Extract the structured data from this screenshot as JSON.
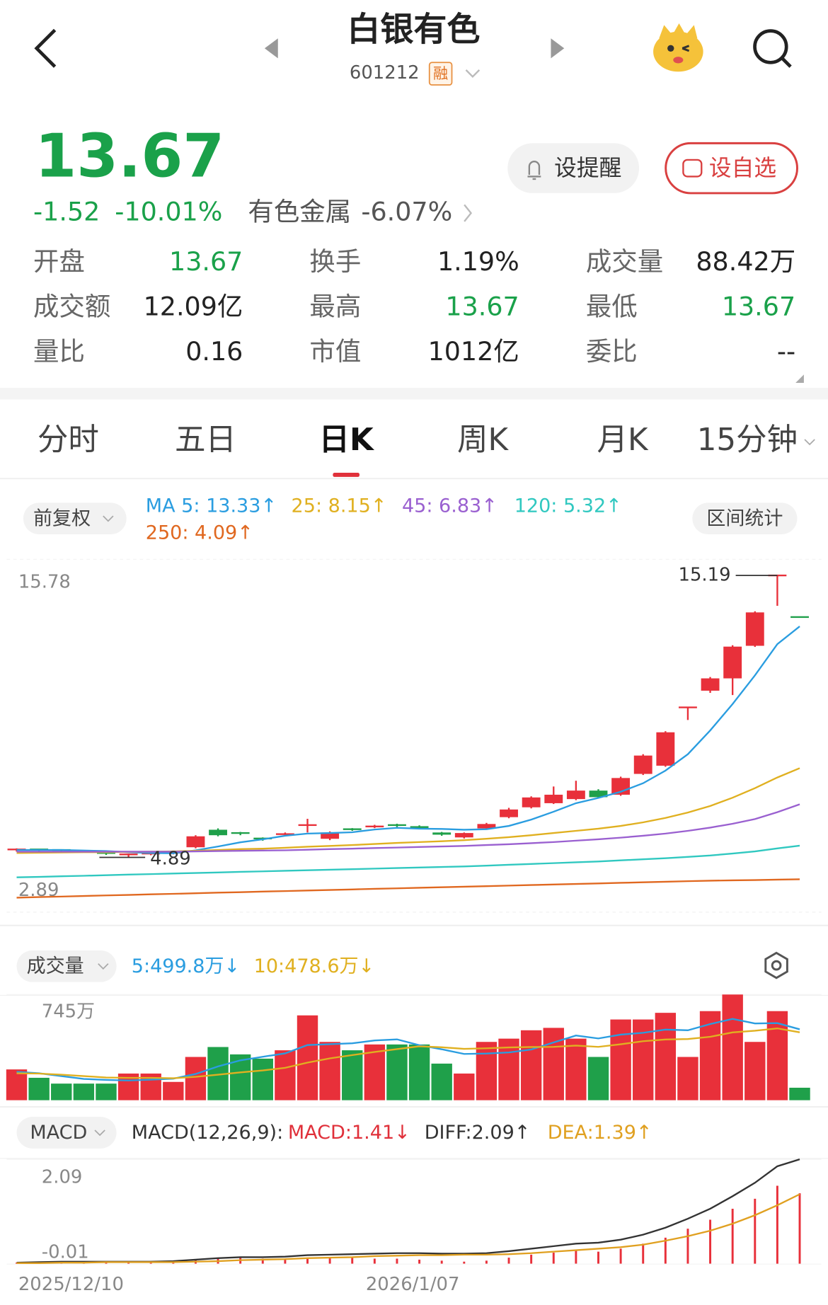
{
  "header": {
    "title": "白银有色",
    "code": "601212",
    "badge": "融"
  },
  "quote": {
    "price": "13.67",
    "change": "-1.52",
    "change_pct": "-10.01%",
    "sector": "有色金属",
    "sector_pct": "-6.07%"
  },
  "buttons": [
    "设提醒",
    "设自选"
  ],
  "stats": [
    {
      "label": "开盘",
      "value": "13.67",
      "color": "#1aa14a"
    },
    {
      "label": "换手",
      "value": "1.19%",
      "color": "#222222"
    },
    {
      "label": "成交量",
      "value": "88.42万",
      "color": "#222222"
    },
    {
      "label": "成交额",
      "value": "12.09亿",
      "color": "#222222"
    },
    {
      "label": "最高",
      "value": "13.67",
      "color": "#1aa14a"
    },
    {
      "label": "最低",
      "value": "13.67",
      "color": "#1aa14a"
    },
    {
      "label": "量比",
      "value": "0.16",
      "color": "#222222"
    },
    {
      "label": "市值",
      "value": "1012亿",
      "color": "#222222"
    },
    {
      "label": "委比",
      "value": "--",
      "color": "#222222"
    }
  ],
  "tabs": [
    "分时",
    "五日",
    "日K",
    "周K",
    "月K",
    "15分钟"
  ],
  "active_tab": 2,
  "kline": {
    "adjust": "前复权",
    "stats_button": "区间统计",
    "ylim": [
      2.89,
      15.78
    ],
    "yticks": [
      15.78,
      2.89
    ],
    "up_color": "#e8303a",
    "down_color": "#1fa04a",
    "high_label": 15.19,
    "low_label": 4.89,
    "open": [
      5.15,
      5.18,
      5.16,
      5.12,
      5.05,
      4.95,
      5.0,
      5.02,
      5.26,
      5.9,
      5.78,
      5.58,
      5.7,
      6.05,
      5.57,
      5.92,
      6.0,
      6.07,
      6.03,
      5.8,
      5.62,
      5.95,
      6.36,
      6.72,
      6.87,
      7.02,
      7.33,
      7.18,
      7.94,
      8.24,
      10.37,
      10.98,
      11.43,
      12.62,
      15.19,
      13.67
    ],
    "high": [
      5.22,
      5.2,
      5.18,
      5.14,
      5.07,
      5.03,
      5.06,
      5.1,
      5.7,
      5.95,
      5.82,
      5.62,
      5.8,
      6.3,
      5.84,
      5.96,
      6.08,
      6.12,
      6.06,
      5.82,
      5.8,
      6.15,
      6.7,
      7.12,
      7.48,
      7.69,
      7.38,
      7.84,
      8.66,
      9.5,
      10.37,
      11.48,
      12.64,
      13.88,
      15.19,
      13.67
    ],
    "low": [
      5.1,
      5.12,
      5.1,
      5.06,
      4.98,
      4.89,
      4.97,
      5.0,
      5.22,
      5.66,
      5.7,
      5.5,
      5.66,
      5.8,
      5.52,
      5.86,
      5.96,
      6.0,
      5.92,
      5.68,
      5.58,
      5.92,
      6.32,
      6.68,
      6.84,
      6.98,
      7.05,
      7.14,
      7.9,
      8.2,
      9.91,
      10.9,
      10.82,
      12.58,
      14.08,
      13.67
    ],
    "close": [
      5.18,
      5.16,
      5.14,
      5.1,
      5.02,
      5.0,
      5.03,
      5.06,
      5.66,
      5.7,
      5.76,
      5.55,
      5.74,
      6.07,
      5.8,
      5.9,
      6.02,
      6.05,
      5.95,
      5.72,
      5.78,
      6.11,
      6.64,
      7.08,
      7.18,
      7.33,
      7.09,
      7.79,
      8.61,
      9.46,
      10.37,
      11.43,
      12.59,
      13.84,
      15.19,
      13.67
    ],
    "ma": [
      {
        "label": "MA 5: 13.33↑",
        "color": "#2a9de0",
        "values": [
          5.16,
          5.16,
          5.16,
          5.14,
          5.12,
          5.08,
          5.05,
          5.04,
          5.15,
          5.29,
          5.44,
          5.55,
          5.68,
          5.76,
          5.78,
          5.81,
          5.91,
          5.97,
          5.94,
          5.93,
          5.9,
          5.92,
          6.04,
          6.27,
          6.56,
          6.87,
          7.06,
          7.29,
          7.6,
          8.06,
          8.66,
          9.53,
          10.49,
          11.54,
          12.68,
          13.33
        ]
      },
      {
        "label": "25: 8.15↑",
        "color": "#e0b020",
        "values": [
          5.05,
          5.06,
          5.07,
          5.08,
          5.08,
          5.09,
          5.1,
          5.11,
          5.13,
          5.16,
          5.19,
          5.21,
          5.24,
          5.28,
          5.31,
          5.34,
          5.38,
          5.42,
          5.45,
          5.48,
          5.52,
          5.57,
          5.63,
          5.7,
          5.78,
          5.86,
          5.94,
          6.04,
          6.17,
          6.33,
          6.53,
          6.77,
          7.07,
          7.42,
          7.81,
          8.15
        ]
      },
      {
        "label": "45: 6.83↑",
        "color": "#9a60d0",
        "values": [
          5.1,
          5.1,
          5.1,
          5.1,
          5.1,
          5.1,
          5.1,
          5.1,
          5.11,
          5.12,
          5.13,
          5.14,
          5.15,
          5.17,
          5.19,
          5.21,
          5.23,
          5.25,
          5.27,
          5.29,
          5.31,
          5.34,
          5.37,
          5.41,
          5.45,
          5.5,
          5.55,
          5.61,
          5.68,
          5.76,
          5.86,
          5.98,
          6.12,
          6.29,
          6.54,
          6.83
        ]
      },
      {
        "label": "120: 5.32↑",
        "color": "#30c8c0",
        "values": [
          4.16,
          4.18,
          4.2,
          4.22,
          4.24,
          4.26,
          4.28,
          4.3,
          4.32,
          4.34,
          4.36,
          4.38,
          4.4,
          4.42,
          4.44,
          4.46,
          4.48,
          4.5,
          4.52,
          4.54,
          4.56,
          4.59,
          4.62,
          4.65,
          4.68,
          4.71,
          4.74,
          4.78,
          4.82,
          4.86,
          4.91,
          4.96,
          5.03,
          5.11,
          5.22,
          5.32
        ]
      },
      {
        "label": "250: 4.09↑",
        "color": "#e06820",
        "values": [
          3.42,
          3.44,
          3.46,
          3.48,
          3.5,
          3.52,
          3.54,
          3.56,
          3.58,
          3.6,
          3.62,
          3.64,
          3.66,
          3.68,
          3.7,
          3.72,
          3.74,
          3.76,
          3.78,
          3.8,
          3.82,
          3.84,
          3.86,
          3.88,
          3.9,
          3.92,
          3.94,
          3.96,
          3.98,
          4.0,
          4.02,
          4.04,
          4.05,
          4.06,
          4.08,
          4.09
        ]
      }
    ]
  },
  "volume": {
    "label": "成交量",
    "ylim": [
      0,
      745
    ],
    "yticks": [
      {
        "value": 745,
        "label": "745万"
      }
    ],
    "values": [
      217,
      158,
      117,
      117,
      117,
      188,
      188,
      129,
      305,
      375,
      323,
      293,
      352,
      598,
      411,
      352,
      393,
      393,
      393,
      258,
      188,
      411,
      434,
      493,
      510,
      434,
      305,
      569,
      569,
      616,
      305,
      628,
      745,
      411,
      628,
      88
    ],
    "ma": [
      {
        "label": "5:499.8万↓",
        "color": "#2a9de0",
        "values": [
          200,
          190,
          170,
          150,
          143,
          139,
          145,
          152,
          185,
          238,
          281,
          306,
          330,
          389,
          395,
          401,
          421,
          429,
          388,
          359,
          326,
          329,
          337,
          357,
          407,
          456,
          435,
          462,
          475,
          498,
          493,
          537,
          573,
          541,
          543,
          499.8
        ]
      },
      {
        "label": "10:478.6万↓",
        "color": "#e0b020",
        "values": [
          190,
          188,
          180,
          170,
          160,
          158,
          158,
          155,
          165,
          180,
          196,
          210,
          228,
          265,
          295,
          318,
          340,
          360,
          380,
          373,
          362,
          366,
          372,
          375,
          376,
          385,
          376,
          394,
          416,
          428,
          431,
          447,
          478,
          490,
          506,
          478.6
        ]
      }
    ]
  },
  "macd": {
    "label": "MACD",
    "params": "MACD(12,26,9):",
    "ylim": [
      -0.01,
      2.09
    ],
    "yticks": [
      2.09,
      -0.01
    ],
    "legend": [
      {
        "label": "MACD:1.41↓",
        "color": "#e0303a"
      },
      {
        "label": "DIFF:2.09↑",
        "color": "#333333"
      },
      {
        "label": "DEA:1.39↑",
        "color": "#e0a020"
      }
    ],
    "diff": [
      0.02,
      0.03,
      0.04,
      0.04,
      0.04,
      0.04,
      0.04,
      0.05,
      0.08,
      0.11,
      0.13,
      0.13,
      0.14,
      0.17,
      0.18,
      0.19,
      0.2,
      0.21,
      0.21,
      0.2,
      0.2,
      0.21,
      0.25,
      0.3,
      0.35,
      0.4,
      0.42,
      0.48,
      0.58,
      0.72,
      0.9,
      1.1,
      1.35,
      1.62,
      1.95,
      2.09
    ],
    "dea": [
      0.01,
      0.01,
      0.02,
      0.02,
      0.03,
      0.03,
      0.03,
      0.03,
      0.04,
      0.05,
      0.07,
      0.08,
      0.09,
      0.11,
      0.12,
      0.13,
      0.15,
      0.16,
      0.17,
      0.17,
      0.18,
      0.18,
      0.19,
      0.21,
      0.24,
      0.27,
      0.3,
      0.33,
      0.38,
      0.46,
      0.55,
      0.66,
      0.8,
      0.97,
      1.17,
      1.39
    ],
    "hist": [
      0.02,
      0.04,
      0.04,
      0.04,
      0.02,
      0.02,
      0.02,
      0.04,
      0.08,
      0.12,
      0.12,
      0.1,
      0.1,
      0.12,
      0.12,
      0.12,
      0.1,
      0.1,
      0.08,
      0.06,
      0.04,
      0.06,
      0.12,
      0.18,
      0.22,
      0.26,
      0.24,
      0.3,
      0.4,
      0.52,
      0.7,
      0.88,
      1.1,
      1.3,
      1.56,
      1.41
    ]
  },
  "dates": [
    "2025/12/10",
    null,
    null,
    null,
    null,
    null,
    null,
    null,
    null,
    null,
    null,
    null,
    null,
    null,
    null,
    null,
    null,
    null,
    "2026/1/07",
    null,
    null,
    null,
    null,
    null,
    null,
    null,
    null,
    null,
    null,
    null,
    null,
    null,
    null,
    null,
    null,
    null
  ]
}
